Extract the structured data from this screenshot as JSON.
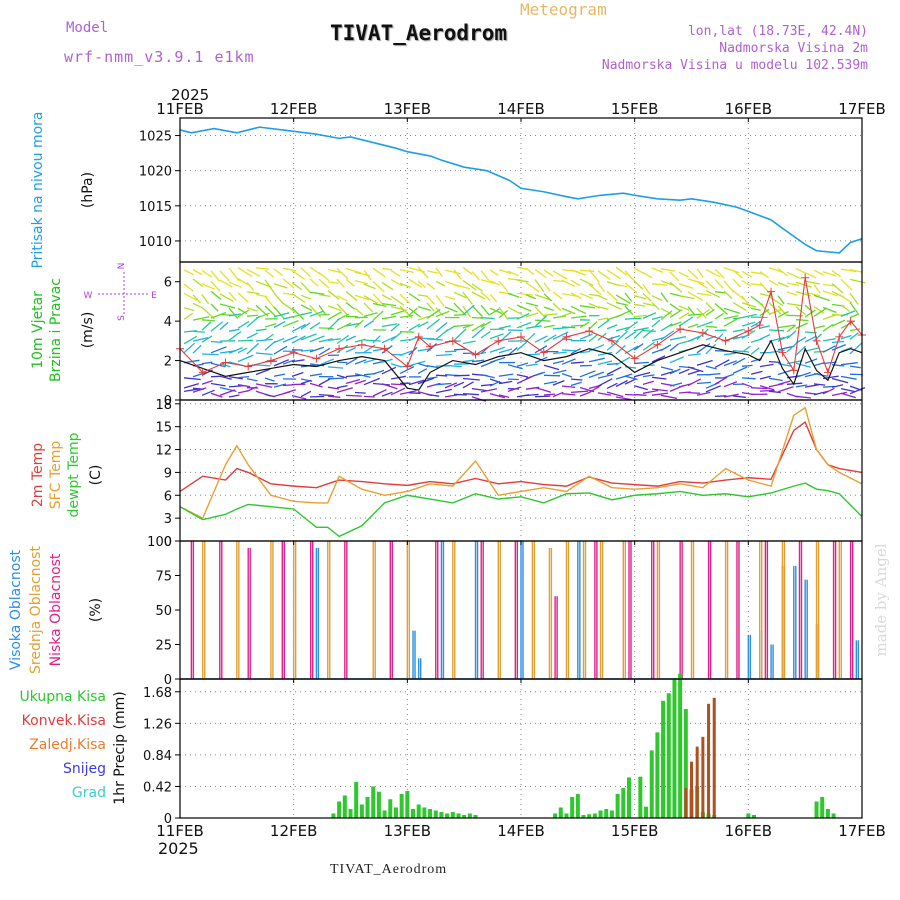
{
  "header": {
    "model_label": "Model",
    "model_name": "wrf-nmm_v3.9.1  e1km",
    "title": "TIVAT_Aerodrom",
    "subtitle": "Meteogram",
    "lonlat": "lon,lat (18.73E, 42.4N)",
    "elevation": "Nadmorska Visina 2m",
    "model_elevation": "Nadmorska Visina u modelu 102.539m",
    "footer": "TIVAT_Aerodrom",
    "watermark": "made by Angel"
  },
  "colors": {
    "pressure": "#1e9ee6",
    "temp2m": "#e23c3c",
    "sfc": "#e8a032",
    "dewpt": "#2ec82e",
    "high_cloud": "#2b8fe3",
    "mid_cloud": "#e0a032",
    "low_cloud": "#e0208a",
    "precip": "#2ec82e",
    "conv": "#e23c3c",
    "frozen": "#e87d2e",
    "snow": "#3c3ce0",
    "grad": "#3ccccc",
    "wind_dir": "#b040e0",
    "grid": "#888888"
  },
  "chart_data": [
    {
      "type": "line",
      "panel": "pressure",
      "x_top_year": "2025",
      "x_ticks": [
        "11FEB",
        "12FEB",
        "13FEB",
        "14FEB",
        "15FEB",
        "16FEB",
        "17FEB"
      ],
      "ylabel_side": "Pritisak na nivou mora",
      "ylabel_unit": "(hPa)",
      "ylim": [
        1007,
        1027.5
      ],
      "yticks": [
        "1010",
        "1015",
        "1020",
        "1025"
      ],
      "x_days": [
        0,
        0.1,
        0.3,
        0.5,
        0.7,
        0.9,
        1.0,
        1.2,
        1.4,
        1.5,
        1.7,
        1.9,
        2.0,
        2.2,
        2.3,
        2.5,
        2.7,
        2.9,
        3.0,
        3.2,
        3.4,
        3.5,
        3.7,
        3.9,
        4.0,
        4.2,
        4.4,
        4.5,
        4.7,
        4.9,
        5.0,
        5.2,
        5.3,
        5.5,
        5.6,
        5.8,
        5.9,
        6.0
      ],
      "values": [
        1025.8,
        1025.4,
        1026.0,
        1025.4,
        1026.2,
        1025.8,
        1025.6,
        1025.2,
        1024.6,
        1024.8,
        1024.0,
        1023.2,
        1022.7,
        1022.1,
        1021.5,
        1020.5,
        1020.0,
        1018.6,
        1017.5,
        1017.0,
        1016.3,
        1016.0,
        1016.5,
        1016.8,
        1016.5,
        1016.0,
        1015.8,
        1016.0,
        1015.5,
        1014.8,
        1014.2,
        1013.0,
        1011.8,
        1009.5,
        1008.6,
        1008.3,
        1009.8,
        1010.3
      ]
    },
    {
      "type": "line",
      "panel": "wind",
      "ylabel_side": "10m Vjetar",
      "ylabel_side2": "Brzina i Pravac",
      "ylabel_unit": "(m/s)",
      "compass": {
        "n": "N",
        "s": "S",
        "e": "E",
        "w": "W"
      },
      "ylim": [
        0,
        7
      ],
      "yticks": [
        "0",
        "2",
        "4",
        "6"
      ],
      "x_days": [
        0,
        0.2,
        0.4,
        0.6,
        0.8,
        1.0,
        1.2,
        1.4,
        1.6,
        1.8,
        2.0,
        2.1,
        2.2,
        2.4,
        2.6,
        2.8,
        3.0,
        3.2,
        3.4,
        3.6,
        3.8,
        4.0,
        4.2,
        4.4,
        4.6,
        4.8,
        5.0,
        5.1,
        5.2,
        5.3,
        5.4,
        5.5,
        5.6,
        5.7,
        5.8,
        5.9,
        6.0
      ],
      "mean_speed": [
        2.0,
        1.6,
        1.2,
        1.4,
        1.6,
        1.8,
        1.7,
        2.0,
        2.2,
        2.0,
        0.6,
        0.5,
        1.4,
        2.0,
        1.8,
        2.2,
        2.4,
        2.0,
        2.2,
        2.6,
        2.3,
        1.4,
        2.0,
        2.4,
        2.8,
        2.5,
        2.3,
        2.0,
        3.0,
        1.6,
        0.8,
        2.6,
        1.5,
        1.0,
        2.4,
        2.6,
        2.4
      ],
      "gust": [
        2.6,
        1.4,
        1.9,
        1.7,
        2.0,
        2.4,
        2.1,
        2.6,
        2.8,
        2.6,
        1.7,
        3.2,
        2.7,
        3.0,
        2.3,
        3.0,
        3.2,
        2.4,
        3.2,
        3.5,
        3.0,
        2.1,
        2.8,
        3.6,
        3.4,
        3.0,
        3.5,
        3.8,
        5.5,
        2.4,
        1.5,
        6.2,
        3.0,
        1.4,
        3.2,
        4.0,
        3.3
      ]
    },
    {
      "type": "line",
      "panel": "temperature",
      "ylabel_side": [
        "2m Temp",
        "SFC Temp",
        "dewpt Temp"
      ],
      "ylabel_unit": "(C)",
      "ylim": [
        0,
        18.5
      ],
      "yticks": [
        "0",
        "3",
        "6",
        "9",
        "12",
        "15",
        "18"
      ],
      "x_days": [
        0,
        0.2,
        0.4,
        0.5,
        0.6,
        0.8,
        1.0,
        1.2,
        1.3,
        1.4,
        1.6,
        1.8,
        2.0,
        2.2,
        2.4,
        2.6,
        2.8,
        3.0,
        3.2,
        3.4,
        3.6,
        3.8,
        4.0,
        4.2,
        4.4,
        4.6,
        4.8,
        5.0,
        5.2,
        5.4,
        5.5,
        5.6,
        5.7,
        5.8,
        6.0
      ],
      "series": [
        {
          "name": "2m Temp",
          "values": [
            6.5,
            8.5,
            8.0,
            9.5,
            9.0,
            7.5,
            7.2,
            7.0,
            7.5,
            8.0,
            7.8,
            7.5,
            7.3,
            7.8,
            7.5,
            8.2,
            7.5,
            7.8,
            7.4,
            7.2,
            8.4,
            7.6,
            7.4,
            7.2,
            7.8,
            7.6,
            8.0,
            8.3,
            8.1,
            14.5,
            15.6,
            12.0,
            10.0,
            9.5,
            9.0
          ]
        },
        {
          "name": "SFC Temp",
          "values": [
            4.5,
            3.0,
            10.0,
            12.5,
            10.0,
            6.0,
            5.2,
            5.0,
            5.0,
            8.5,
            6.8,
            6.0,
            6.5,
            7.5,
            7.2,
            10.5,
            6.0,
            6.5,
            7.0,
            6.5,
            8.5,
            7.0,
            6.8,
            7.0,
            7.5,
            7.0,
            9.5,
            8.0,
            7.2,
            16.5,
            17.5,
            12.0,
            10.0,
            9.0,
            7.5
          ]
        },
        {
          "name": "dewpt Temp",
          "values": [
            4.5,
            2.8,
            3.5,
            4.2,
            4.8,
            4.5,
            4.2,
            1.8,
            1.8,
            0.6,
            2.0,
            5.0,
            6.0,
            5.5,
            5.0,
            6.2,
            5.5,
            5.8,
            5.0,
            6.2,
            6.3,
            5.4,
            6.0,
            6.2,
            6.5,
            6.0,
            6.2,
            5.8,
            6.3,
            7.2,
            7.6,
            6.8,
            6.6,
            6.2,
            3.2
          ]
        }
      ]
    },
    {
      "type": "bar",
      "panel": "clouds",
      "ylabel_side": [
        "Visoka Oblacnost",
        "Srednja Oblacnost",
        "Niska Oblacnost"
      ],
      "ylabel_unit": "(%)",
      "ylim": [
        0,
        100
      ],
      "yticks": [
        "0",
        "25",
        "50",
        "75",
        "100"
      ],
      "series": [
        {
          "name": "Visoka Oblacnost",
          "x_days": [
            1.2,
            2.05,
            2.1,
            2.3,
            2.6,
            3.0,
            3.5,
            5.0,
            5.1,
            5.2,
            5.3,
            5.4,
            5.5,
            5.6,
            5.95
          ],
          "values": [
            95,
            35,
            15,
            100,
            100,
            100,
            100,
            32,
            35,
            25,
            82,
            82,
            72,
            40,
            28
          ]
        },
        {
          "name": "Srednja Oblacnost",
          "x_days": [
            0.2,
            0.5,
            0.8,
            1.0,
            1.3,
            1.7,
            2.0,
            2.4,
            2.8,
            3.1,
            3.25,
            3.4,
            3.55,
            3.7,
            3.9,
            4.2,
            4.5,
            4.8,
            5.1,
            5.3,
            5.6,
            5.8
          ],
          "values": [
            100,
            100,
            100,
            100,
            100,
            100,
            100,
            100,
            100,
            100,
            95,
            100,
            100,
            100,
            100,
            100,
            100,
            100,
            100,
            100,
            100,
            100
          ]
        },
        {
          "name": "Niska Oblacnost",
          "x_days": [
            0.1,
            0.35,
            0.6,
            0.9,
            1.15,
            1.45,
            1.85,
            2.25,
            2.65,
            2.95,
            3.3,
            3.65,
            3.95,
            4.15,
            4.4,
            4.65,
            4.9,
            5.15,
            5.45,
            5.75,
            5.9
          ],
          "values": [
            100,
            100,
            95,
            100,
            100,
            100,
            100,
            100,
            100,
            100,
            60,
            100,
            100,
            100,
            100,
            100,
            100,
            100,
            100,
            100,
            100
          ]
        }
      ]
    },
    {
      "type": "bar",
      "panel": "precip",
      "legend": [
        "Ukupna  Kisa",
        "Konvek.Kisa",
        "Zaledj.Kisa",
        "Snijeg",
        "Grad"
      ],
      "ylabel_side": "1hr Precip (mm)",
      "ylim": [
        0,
        1.85
      ],
      "yticks": [
        "0",
        "0.42",
        "0.84",
        "1.26",
        "1.68"
      ],
      "x_bottom_year": "2025",
      "x_days": [
        1.35,
        1.4,
        1.45,
        1.5,
        1.55,
        1.6,
        1.65,
        1.7,
        1.75,
        1.8,
        1.85,
        1.9,
        1.95,
        2.0,
        2.05,
        2.1,
        2.15,
        2.2,
        2.25,
        2.3,
        2.35,
        2.4,
        2.45,
        2.5,
        2.55,
        2.6,
        3.3,
        3.35,
        3.4,
        3.45,
        3.5,
        3.55,
        3.6,
        3.65,
        3.7,
        3.75,
        3.8,
        3.85,
        3.9,
        3.95,
        4.05,
        4.1,
        4.15,
        4.2,
        4.25,
        4.3,
        4.35,
        4.4,
        4.45,
        4.5,
        4.55,
        4.6,
        4.65,
        4.7,
        5.0,
        5.05,
        5.6,
        5.65,
        5.7,
        5.75
      ],
      "values": [
        0.06,
        0.22,
        0.3,
        0.12,
        0.48,
        0.18,
        0.28,
        0.42,
        0.35,
        0.1,
        0.25,
        0.14,
        0.32,
        0.36,
        0.12,
        0.18,
        0.14,
        0.12,
        0.1,
        0.08,
        0.06,
        0.08,
        0.06,
        0.04,
        0.06,
        0.04,
        0.06,
        0.14,
        0.06,
        0.28,
        0.32,
        0.04,
        0.05,
        0.06,
        0.1,
        0.12,
        0.1,
        0.32,
        0.4,
        0.54,
        0.55,
        0.15,
        0.9,
        1.14,
        1.56,
        1.66,
        1.86,
        1.92,
        1.45,
        0.38,
        0.42,
        0.08,
        0.06,
        0.04,
        0.06,
        0.04,
        0.22,
        0.28,
        0.12,
        0.06
      ],
      "conv_x_days": [
        4.45,
        4.5,
        4.55,
        4.6,
        4.65,
        4.7
      ],
      "conv_values": [
        0.4,
        0.75,
        0.95,
        1.08,
        1.52,
        1.6
      ]
    }
  ]
}
